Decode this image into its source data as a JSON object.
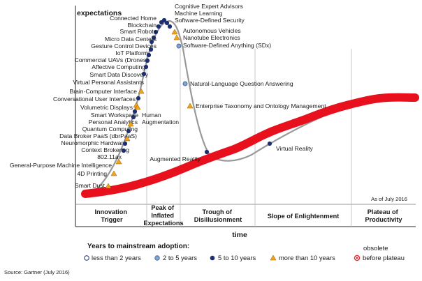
{
  "axes": {
    "y_label": "expectations",
    "x_label": "time"
  },
  "as_of": "As of July 2016",
  "source": "Source: Gartner (July 2016)",
  "phases": [
    {
      "lines": [
        "Innovation",
        "Trigger"
      ]
    },
    {
      "lines": [
        "Peak of",
        "Inflated",
        "Expectations"
      ]
    },
    {
      "lines": [
        "Trough of",
        "Disillusionment"
      ]
    },
    {
      "lines": [
        "Slope of Enlightenment"
      ]
    },
    {
      "lines": [
        "Plateau of",
        "Productivity"
      ]
    }
  ],
  "legend": {
    "title": "Years to mainstream adoption:",
    "items": [
      "less than 2 years",
      "2 to 5 years",
      "5 to 10 years",
      "more than 10 years",
      "before plateau"
    ],
    "obsolete_label": "obsolete"
  },
  "colors": {
    "curve": "#999999",
    "overlay": "#e8101c",
    "dark_dot": "#1d2f6e",
    "light_dot": "#7fa6d4",
    "triangle": "#f2a51a",
    "obsolete": "#e8303a"
  },
  "technologies": [
    {
      "name": "Cognitive Expert Advisors",
      "marker": "dark"
    },
    {
      "name": "Machine Learning",
      "marker": "dark"
    },
    {
      "name": "Software-Defined Security",
      "marker": "dark"
    },
    {
      "name": "Autonomous Vehicles",
      "marker": "triangle"
    },
    {
      "name": "Nanotube Electronics",
      "marker": "triangle"
    },
    {
      "name": "Software-Defined Anything (SDx)",
      "marker": "light"
    },
    {
      "name": "Connected Home",
      "marker": "dark"
    },
    {
      "name": "Blockchain",
      "marker": "dark"
    },
    {
      "name": "Smart Robots",
      "marker": "dark"
    },
    {
      "name": "Micro Data Centers",
      "marker": "dark"
    },
    {
      "name": "Gesture Control Devices",
      "marker": "dark"
    },
    {
      "name": "IoT Platform",
      "marker": "dark"
    },
    {
      "name": "Commercial UAVs (Drones)",
      "marker": "dark"
    },
    {
      "name": "Affective Computing",
      "marker": "dark"
    },
    {
      "name": "Smart Data Discovery",
      "marker": "dark"
    },
    {
      "name": "Virtual Personal Assistants",
      "marker": "dark"
    },
    {
      "name": "Brain-Computer Interface",
      "marker": "triangle"
    },
    {
      "name": "Conversational User Interfaces",
      "marker": "dark"
    },
    {
      "name": "Volumetric Displays",
      "marker": "triangle"
    },
    {
      "name": "Smart Workspace",
      "marker": "dark"
    },
    {
      "name": "Personal Analytics",
      "marker": "dark"
    },
    {
      "name": "Quantum Computing",
      "marker": "triangle"
    },
    {
      "name": "Data Broker PaaS (dbrPaaS)",
      "marker": "dark"
    },
    {
      "name": "Neuromorphic Hardware",
      "marker": "triangle"
    },
    {
      "name": "Context Brokering",
      "marker": "dark"
    },
    {
      "name": "802.11ax",
      "marker": "dark"
    },
    {
      "name": "General-Purpose Machine Intelligence",
      "marker": "triangle"
    },
    {
      "name": "4D Printing",
      "marker": "triangle"
    },
    {
      "name": "Smart Dust",
      "marker": "triangle"
    },
    {
      "name": "Human Augmentation",
      "marker": "triangle"
    },
    {
      "name": "Natural-Language Question Answering",
      "marker": "light"
    },
    {
      "name": "Enterprise Taxonomy and Ontology Management",
      "marker": "triangle"
    },
    {
      "name": "Augmented Reality",
      "marker": "dark"
    },
    {
      "name": "Virtual Reality",
      "marker": "dark"
    }
  ]
}
